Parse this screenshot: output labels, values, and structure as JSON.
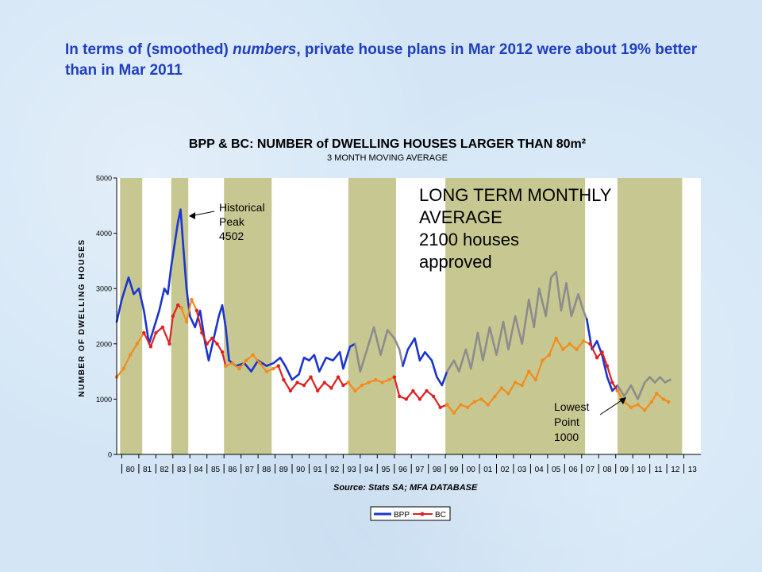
{
  "slide": {
    "headline_pre": "In terms of (smoothed) ",
    "headline_em": "numbers",
    "headline_post": ", private house plans in Mar 2012 were about 19% better than in Mar 2011"
  },
  "chart_data": {
    "type": "line",
    "title": "BPP & BC: NUMBER of DWELLING HOUSES LARGER THAN 80m²",
    "subtitle": "3 MONTH MOVING AVERAGE",
    "ylabel": "NUMBER OF DWELLING HOUSES",
    "xlabel": "",
    "source": "Source:  Stats SA;  MFA DATABASE",
    "ylim": [
      0,
      5000
    ],
    "xlim": [
      1979.7,
      2014.0
    ],
    "yticks": [
      "0",
      "1000",
      "2000",
      "3000",
      "4000",
      "5000"
    ],
    "xticks": [
      "80",
      "81",
      "82",
      "83",
      "84",
      "85",
      "86",
      "87",
      "88",
      "89",
      "90",
      "91",
      "92",
      "93",
      "94",
      "95",
      "96",
      "97",
      "98",
      "99",
      "00",
      "01",
      "02",
      "03",
      "04",
      "05",
      "06",
      "07",
      "08",
      "09",
      "10",
      "11",
      "12",
      "13"
    ],
    "grid": false,
    "legend_position": "bottom-center",
    "legend": [
      "BPP",
      "BC"
    ],
    "shaded_periods": [
      [
        1979.9,
        1981.2
      ],
      [
        1982.9,
        1983.9
      ],
      [
        1986.0,
        1988.8
      ],
      [
        1993.3,
        1996.1
      ],
      [
        1999.0,
        2007.2
      ],
      [
        2009.1,
        2012.9
      ]
    ],
    "annotations": {
      "peak": [
        "Historical",
        "Peak",
        "4502"
      ],
      "average": [
        "LONG TERM MONTHLY",
        "AVERAGE",
        "2100 houses",
        "approved"
      ],
      "lowest": [
        "Lowest",
        "Point",
        "1000"
      ]
    },
    "series": [
      {
        "name": "BPP",
        "segments": [
          {
            "color": "#1a35d0",
            "points": [
              [
                1979.7,
                2400
              ],
              [
                1980.0,
                2800
              ],
              [
                1980.4,
                3200
              ],
              [
                1980.7,
                2900
              ],
              [
                1981.0,
                3000
              ],
              [
                1981.3,
                2600
              ],
              [
                1981.6,
                2000
              ],
              [
                1981.9,
                2300
              ],
              [
                1982.2,
                2600
              ],
              [
                1982.5,
                3000
              ],
              [
                1982.7,
                2900
              ],
              [
                1982.9,
                3400
              ],
              [
                1983.15,
                3900
              ],
              [
                1983.3,
                4200
              ],
              [
                1983.45,
                4430
              ],
              [
                1983.6,
                3800
              ],
              [
                1983.8,
                3000
              ],
              [
                1984.0,
                2500
              ],
              [
                1984.3,
                2300
              ],
              [
                1984.6,
                2600
              ],
              [
                1984.9,
                2000
              ],
              [
                1985.1,
                1700
              ],
              [
                1985.4,
                2100
              ],
              [
                1985.7,
                2500
              ],
              [
                1985.9,
                2700
              ],
              [
                1986.1,
                2300
              ],
              [
                1986.3,
                1700
              ],
              [
                1986.7,
                1600
              ],
              [
                1987.2,
                1650
              ],
              [
                1987.6,
                1500
              ],
              [
                1988.0,
                1700
              ],
              [
                1988.5,
                1600
              ],
              [
                1988.9,
                1650
              ],
              [
                1989.3,
                1750
              ],
              [
                1989.6,
                1600
              ],
              [
                1990.0,
                1350
              ],
              [
                1990.4,
                1450
              ],
              [
                1990.7,
                1750
              ],
              [
                1991.0,
                1700
              ],
              [
                1991.3,
                1800
              ],
              [
                1991.6,
                1500
              ],
              [
                1992.0,
                1750
              ],
              [
                1992.4,
                1700
              ],
              [
                1992.8,
                1850
              ],
              [
                1993.0,
                1550
              ],
              [
                1993.4,
                1950
              ],
              [
                1993.7,
                2000
              ]
            ]
          },
          {
            "color": "#8c8c8c",
            "points": [
              [
                1993.7,
                2000
              ],
              [
                1994.0,
                1500
              ],
              [
                1994.4,
                1900
              ],
              [
                1994.8,
                2300
              ],
              [
                1995.2,
                1800
              ],
              [
                1995.6,
                2250
              ],
              [
                1996.0,
                2100
              ],
              [
                1996.3,
                1900
              ],
              [
                1996.5,
                1600
              ]
            ]
          },
          {
            "color": "#1a35d0",
            "points": [
              [
                1996.5,
                1600
              ],
              [
                1996.8,
                1900
              ],
              [
                1997.2,
                2100
              ],
              [
                1997.5,
                1700
              ],
              [
                1997.8,
                1850
              ],
              [
                1998.2,
                1700
              ],
              [
                1998.5,
                1400
              ],
              [
                1998.8,
                1250
              ],
              [
                1999.1,
                1500
              ]
            ]
          },
          {
            "color": "#8c8c8c",
            "points": [
              [
                1999.1,
                1500
              ],
              [
                1999.5,
                1700
              ],
              [
                1999.8,
                1500
              ],
              [
                2000.2,
                1900
              ],
              [
                2000.5,
                1550
              ],
              [
                2000.9,
                2200
              ],
              [
                2001.2,
                1700
              ],
              [
                2001.6,
                2300
              ],
              [
                2002.0,
                1800
              ],
              [
                2002.4,
                2400
              ],
              [
                2002.7,
                1900
              ],
              [
                2003.1,
                2500
              ],
              [
                2003.5,
                2000
              ],
              [
                2003.9,
                2800
              ],
              [
                2004.2,
                2300
              ],
              [
                2004.5,
                3000
              ],
              [
                2004.9,
                2500
              ],
              [
                2005.2,
                3200
              ],
              [
                2005.5,
                3300
              ],
              [
                2005.8,
                2600
              ],
              [
                2006.1,
                3100
              ],
              [
                2006.4,
                2500
              ],
              [
                2006.8,
                2900
              ],
              [
                2007.1,
                2600
              ],
              [
                2007.3,
                2450
              ]
            ]
          },
          {
            "color": "#1a35d0",
            "points": [
              [
                2007.3,
                2450
              ],
              [
                2007.6,
                1900
              ],
              [
                2007.9,
                2050
              ],
              [
                2008.2,
                1800
              ],
              [
                2008.5,
                1400
              ],
              [
                2008.8,
                1150
              ],
              [
                2009.1,
                1250
              ]
            ]
          },
          {
            "color": "#8c8c8c",
            "points": [
              [
                2009.1,
                1250
              ],
              [
                2009.5,
                1050
              ],
              [
                2009.9,
                1250
              ],
              [
                2010.3,
                1000
              ],
              [
                2010.7,
                1300
              ],
              [
                2011.0,
                1400
              ],
              [
                2011.3,
                1300
              ],
              [
                2011.6,
                1400
              ],
              [
                2011.9,
                1300
              ],
              [
                2012.2,
                1350
              ]
            ]
          }
        ]
      },
      {
        "name": "BC",
        "segments": [
          {
            "color": "#f28c1c",
            "points": [
              [
                1979.7,
                1400
              ],
              [
                1980.1,
                1550
              ],
              [
                1980.5,
                1800
              ],
              [
                1980.9,
                2000
              ],
              [
                1981.3,
                2200
              ]
            ]
          },
          {
            "color": "#e02020",
            "points": [
              [
                1981.3,
                2200
              ],
              [
                1981.7,
                1950
              ],
              [
                1982.0,
                2200
              ],
              [
                1982.4,
                2300
              ],
              [
                1982.8,
                2000
              ],
              [
                1983.0,
                2500
              ],
              [
                1983.3,
                2700
              ],
              [
                1983.5,
                2650
              ]
            ]
          },
          {
            "color": "#f28c1c",
            "points": [
              [
                1983.5,
                2650
              ],
              [
                1983.8,
                2400
              ],
              [
                1984.1,
                2800
              ],
              [
                1984.4,
                2600
              ]
            ]
          },
          {
            "color": "#e02020",
            "points": [
              [
                1984.4,
                2600
              ],
              [
                1984.7,
                2200
              ],
              [
                1985.0,
                2000
              ],
              [
                1985.3,
                2100
              ],
              [
                1985.6,
                2000
              ],
              [
                1985.9,
                1850
              ],
              [
                1986.1,
                1600
              ]
            ]
          },
          {
            "color": "#f28c1c",
            "points": [
              [
                1986.1,
                1600
              ],
              [
                1986.5,
                1650
              ],
              [
                1986.9,
                1550
              ],
              [
                1987.3,
                1700
              ],
              [
                1987.7,
                1800
              ],
              [
                1988.1,
                1650
              ],
              [
                1988.5,
                1500
              ],
              [
                1988.9,
                1550
              ],
              [
                1989.2,
                1600
              ]
            ]
          },
          {
            "color": "#e02020",
            "points": [
              [
                1989.2,
                1600
              ],
              [
                1989.5,
                1350
              ],
              [
                1989.9,
                1150
              ],
              [
                1990.3,
                1300
              ],
              [
                1990.7,
                1250
              ],
              [
                1991.1,
                1400
              ],
              [
                1991.5,
                1150
              ],
              [
                1991.9,
                1300
              ],
              [
                1992.3,
                1200
              ],
              [
                1992.7,
                1400
              ],
              [
                1993.0,
                1250
              ],
              [
                1993.3,
                1300
              ]
            ]
          },
          {
            "color": "#f28c1c",
            "points": [
              [
                1993.3,
                1300
              ],
              [
                1993.7,
                1150
              ],
              [
                1994.1,
                1250
              ],
              [
                1994.5,
                1300
              ],
              [
                1994.9,
                1350
              ],
              [
                1995.3,
                1300
              ],
              [
                1995.7,
                1350
              ],
              [
                1996.0,
                1400
              ]
            ]
          },
          {
            "color": "#e02020",
            "points": [
              [
                1996.0,
                1400
              ],
              [
                1996.3,
                1050
              ],
              [
                1996.7,
                1000
              ],
              [
                1997.1,
                1150
              ],
              [
                1997.5,
                1000
              ],
              [
                1997.9,
                1150
              ],
              [
                1998.3,
                1050
              ],
              [
                1998.7,
                850
              ],
              [
                1999.1,
                900
              ]
            ]
          },
          {
            "color": "#f28c1c",
            "points": [
              [
                1999.1,
                900
              ],
              [
                1999.5,
                750
              ],
              [
                1999.9,
                900
              ],
              [
                2000.3,
                850
              ],
              [
                2000.7,
                950
              ],
              [
                2001.1,
                1000
              ],
              [
                2001.5,
                900
              ],
              [
                2001.9,
                1050
              ],
              [
                2002.3,
                1200
              ],
              [
                2002.7,
                1100
              ],
              [
                2003.1,
                1300
              ],
              [
                2003.5,
                1250
              ],
              [
                2003.9,
                1500
              ],
              [
                2004.3,
                1350
              ],
              [
                2004.7,
                1700
              ],
              [
                2005.1,
                1800
              ],
              [
                2005.5,
                2100
              ],
              [
                2005.9,
                1900
              ],
              [
                2006.3,
                2000
              ],
              [
                2006.7,
                1900
              ],
              [
                2007.1,
                2050
              ],
              [
                2007.5,
                2000
              ]
            ]
          },
          {
            "color": "#e02020",
            "points": [
              [
                2007.5,
                2000
              ],
              [
                2007.9,
                1750
              ],
              [
                2008.2,
                1850
              ],
              [
                2008.5,
                1600
              ],
              [
                2008.8,
                1300
              ],
              [
                2009.1,
                1150
              ]
            ]
          },
          {
            "color": "#f28c1c",
            "points": [
              [
                2009.1,
                1150
              ],
              [
                2009.5,
                950
              ],
              [
                2009.9,
                850
              ],
              [
                2010.3,
                900
              ],
              [
                2010.7,
                800
              ],
              [
                2011.1,
                950
              ],
              [
                2011.4,
                1100
              ],
              [
                2011.8,
                1000
              ],
              [
                2012.1,
                950
              ]
            ]
          }
        ]
      }
    ]
  }
}
